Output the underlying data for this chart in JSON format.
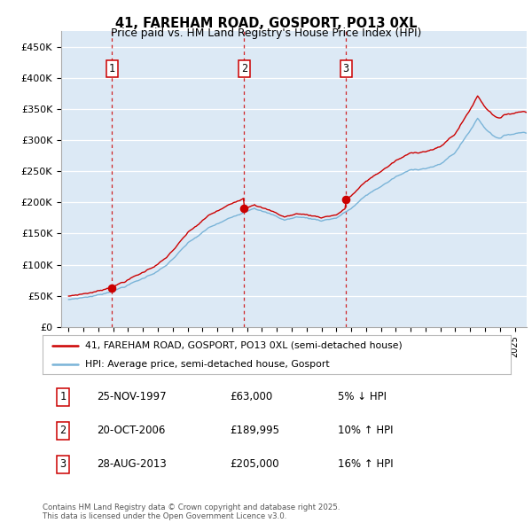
{
  "title_line1": "41, FAREHAM ROAD, GOSPORT, PO13 0XL",
  "title_line2": "Price paid vs. HM Land Registry's House Price Index (HPI)",
  "fig_bg_color": "#ffffff",
  "plot_bg_color": "#dce9f5",
  "ylim": [
    0,
    475000
  ],
  "yticks": [
    0,
    50000,
    100000,
    150000,
    200000,
    250000,
    300000,
    350000,
    400000,
    450000
  ],
  "ytick_labels": [
    "£0",
    "£50K",
    "£100K",
    "£150K",
    "£200K",
    "£250K",
    "£300K",
    "£350K",
    "£400K",
    "£450K"
  ],
  "hpi_line_color": "#7ab4d8",
  "price_line_color": "#cc0000",
  "vline_color": "#cc0000",
  "sale_dates_num": [
    1997.9,
    2006.8,
    2013.65
  ],
  "sale_prices": [
    63000,
    189995,
    205000
  ],
  "sale_labels": [
    "1",
    "2",
    "3"
  ],
  "legend_entries": [
    "41, FAREHAM ROAD, GOSPORT, PO13 0XL (semi-detached house)",
    "HPI: Average price, semi-detached house, Gosport"
  ],
  "table_data": [
    [
      "1",
      "25-NOV-1997",
      "£63,000",
      "5% ↓ HPI"
    ],
    [
      "2",
      "20-OCT-2006",
      "£189,995",
      "10% ↑ HPI"
    ],
    [
      "3",
      "28-AUG-2013",
      "£205,000",
      "16% ↑ HPI"
    ]
  ],
  "footer_text": "Contains HM Land Registry data © Crown copyright and database right 2025.\nThis data is licensed under the Open Government Licence v3.0.",
  "xlim_start": 1994.5,
  "xlim_end": 2025.8
}
